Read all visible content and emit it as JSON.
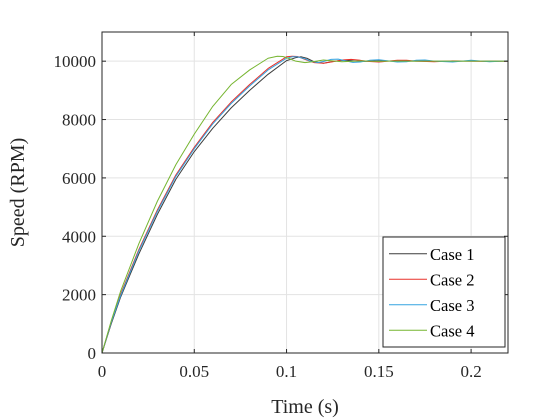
{
  "chart_data": {
    "type": "line",
    "title": "",
    "xlabel": "Time (s)",
    "ylabel": "Speed (RPM)",
    "xlim": [
      0,
      0.22
    ],
    "ylim": [
      0,
      11000
    ],
    "xticks": [
      0,
      0.05,
      0.1,
      0.15,
      0.2
    ],
    "xtick_labels": [
      "0",
      "0.05",
      "0.1",
      "0.15",
      "0.2"
    ],
    "yticks": [
      0,
      2000,
      4000,
      6000,
      8000,
      10000
    ],
    "ytick_labels": [
      "0",
      "2000",
      "4000",
      "6000",
      "8000",
      "10000"
    ],
    "grid": true,
    "legend_position": "bottom-right",
    "series": [
      {
        "name": "Case 1",
        "color": "#3d3d3d",
        "x": [
          0,
          0.005,
          0.01,
          0.02,
          0.03,
          0.04,
          0.05,
          0.06,
          0.07,
          0.08,
          0.09,
          0.1,
          0.105,
          0.108,
          0.111,
          0.115,
          0.12,
          0.125,
          0.13,
          0.135,
          0.14,
          0.15,
          0.16,
          0.17,
          0.18,
          0.19,
          0.2,
          0.21,
          0.22
        ],
        "y": [
          0,
          1000,
          1900,
          3400,
          4750,
          5950,
          6900,
          7700,
          8400,
          9000,
          9550,
          10020,
          10120,
          10150,
          10100,
          9980,
          9930,
          9990,
          10030,
          10020,
          9990,
          10010,
          10000,
          10005,
          9995,
          10002,
          10000,
          10000,
          10000
        ]
      },
      {
        "name": "Case 2",
        "color": "#e8302a",
        "x": [
          0,
          0.005,
          0.01,
          0.02,
          0.03,
          0.04,
          0.05,
          0.06,
          0.07,
          0.08,
          0.09,
          0.1,
          0.103,
          0.106,
          0.11,
          0.115,
          0.12,
          0.125,
          0.13,
          0.135,
          0.14,
          0.145,
          0.15,
          0.155,
          0.16,
          0.165,
          0.17,
          0.18,
          0.19,
          0.2,
          0.21,
          0.22
        ],
        "y": [
          0,
          1050,
          2000,
          3550,
          4900,
          6100,
          7050,
          7900,
          8600,
          9200,
          9750,
          10150,
          10170,
          10160,
          10060,
          9950,
          9930,
          9980,
          10040,
          10060,
          10030,
          9990,
          9970,
          10000,
          10030,
          10030,
          10000,
          9980,
          10010,
          10000,
          9995,
          10000
        ]
      },
      {
        "name": "Case 3",
        "color": "#33a3e0",
        "x": [
          0,
          0.005,
          0.01,
          0.02,
          0.03,
          0.04,
          0.05,
          0.06,
          0.07,
          0.08,
          0.09,
          0.1,
          0.103,
          0.106,
          0.11,
          0.113,
          0.117,
          0.12,
          0.124,
          0.128,
          0.132,
          0.136,
          0.14,
          0.145,
          0.15,
          0.155,
          0.16,
          0.165,
          0.17,
          0.175,
          0.18,
          0.19,
          0.2,
          0.21,
          0.22
        ],
        "y": [
          0,
          1050,
          1950,
          3500,
          4850,
          6050,
          7000,
          7850,
          8550,
          9150,
          9700,
          10100,
          10150,
          10150,
          10080,
          10000,
          9950,
          9990,
          10060,
          10070,
          10010,
          9960,
          9970,
          10030,
          10050,
          10010,
          9970,
          9980,
          10030,
          10040,
          10000,
          9970,
          10030,
          9980,
          10010
        ]
      },
      {
        "name": "Case 4",
        "color": "#76b530",
        "x": [
          0,
          0.005,
          0.01,
          0.02,
          0.03,
          0.04,
          0.05,
          0.06,
          0.07,
          0.08,
          0.09,
          0.095,
          0.098,
          0.101,
          0.105,
          0.11,
          0.115,
          0.12,
          0.125,
          0.13,
          0.14,
          0.15,
          0.16,
          0.17,
          0.18,
          0.19,
          0.2,
          0.21,
          0.22
        ],
        "y": [
          0,
          1100,
          2100,
          3750,
          5200,
          6450,
          7500,
          8450,
          9200,
          9700,
          10100,
          10170,
          10160,
          10100,
          10000,
          9950,
          9990,
          10040,
          10010,
          9980,
          10010,
          9995,
          10005,
          10000,
          10000,
          10000,
          10000,
          10000,
          10000
        ]
      }
    ]
  }
}
